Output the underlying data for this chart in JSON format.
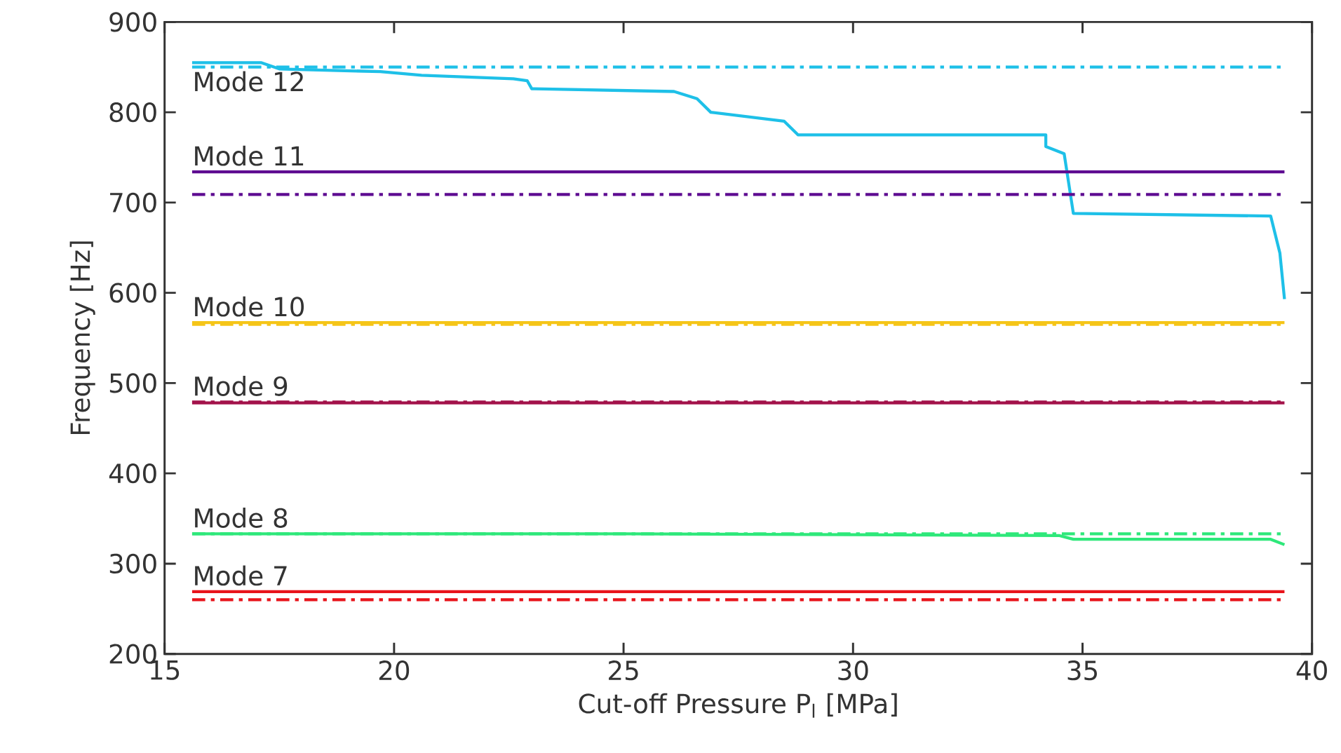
{
  "chart_data": {
    "type": "line",
    "xlabel": "Cut-off Pressure P$_{l}$ [MPa]",
    "ylabel": "Frequency [Hz]",
    "xlim": [
      15,
      40
    ],
    "ylim": [
      200,
      900
    ],
    "xticks": [
      15,
      20,
      25,
      30,
      35,
      40
    ],
    "yticks": [
      200,
      300,
      400,
      500,
      600,
      700,
      800,
      900
    ],
    "grid": false,
    "legend": false,
    "marker": "none",
    "series": [
      {
        "color": "#1ec0e8",
        "line_style": "dashed",
        "x": [
          15.6,
          39.4
        ],
        "values": [
          850,
          850
        ]
      },
      {
        "name": "Mode 12",
        "color": "#1ec0e8",
        "line_style": "solid",
        "x": [
          15.6,
          17.1,
          17.5,
          19.7,
          20.6,
          22.6,
          22.9,
          23.0,
          26.1,
          26.6,
          26.9,
          28.5,
          28.8,
          34.2,
          34.2,
          34.6,
          34.8,
          39.1,
          39.3,
          39.4
        ],
        "values": [
          855,
          855,
          848,
          845,
          841,
          837,
          835,
          826,
          823,
          815,
          800,
          790,
          775,
          775,
          762,
          754,
          688,
          685,
          644,
          593
        ]
      },
      {
        "name": "Mode 11",
        "color": "#5e0b91",
        "line_style": "solid",
        "x": [
          15.6,
          39.4
        ],
        "values": [
          734,
          734
        ]
      },
      {
        "color": "#5e0b91",
        "line_style": "dashed",
        "x": [
          15.6,
          39.4
        ],
        "values": [
          709,
          709
        ]
      },
      {
        "name": "Mode 10",
        "color": "#f5c518",
        "line_style": "solid",
        "x": [
          15.6,
          39.4
        ],
        "values": [
          567,
          567
        ]
      },
      {
        "color": "#f5c518",
        "line_style": "dashed",
        "x": [
          15.6,
          39.4
        ],
        "values": [
          565,
          565
        ]
      },
      {
        "name": "Mode 9",
        "color": "#a3124a",
        "line_style": "solid",
        "x": [
          15.6,
          39.4
        ],
        "values": [
          478,
          478
        ]
      },
      {
        "color": "#a3124a",
        "line_style": "dashed",
        "x": [
          15.6,
          39.4
        ],
        "values": [
          479,
          479
        ]
      },
      {
        "color": "#2ee87a",
        "line_style": "dashed",
        "x": [
          15.6,
          39.4
        ],
        "values": [
          333,
          333
        ]
      },
      {
        "name": "Mode 8",
        "color": "#2ee87a",
        "line_style": "solid",
        "x": [
          15.6,
          25,
          30,
          34.5,
          34.8,
          39.1,
          39.4
        ],
        "values": [
          333,
          333,
          332,
          331,
          327,
          327,
          321
        ]
      },
      {
        "name": "Mode 7",
        "color": "#e8141b",
        "line_style": "solid",
        "x": [
          15.6,
          39.4
        ],
        "values": [
          269,
          269
        ]
      },
      {
        "color": "#e8141b",
        "line_style": "dashed",
        "x": [
          15.6,
          39.4
        ],
        "values": [
          260,
          260
        ]
      }
    ]
  }
}
